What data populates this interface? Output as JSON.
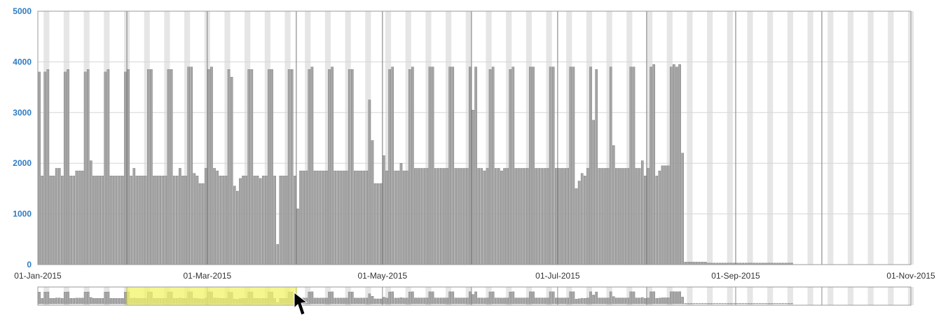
{
  "colors": {
    "bar": "#a6a6a6",
    "bar_stroke": "#6e6e6e",
    "stripe": "#e6e6e6",
    "gridline": "#d6d6d6",
    "month_line": "#8c8c8c",
    "axis_frame": "#9a9a9a",
    "y_label": "#2e7bc4",
    "x_label": "#333333",
    "selection": "#f3f36a",
    "selection_edge": "#c8c83c"
  },
  "icons": {
    "cursor": "arrow-cursor-icon"
  },
  "chart_data": {
    "type": "bar",
    "x_axis_type": "date",
    "start_date": "2015-01-01",
    "end_date": "2015-11-01",
    "ylim": [
      0,
      5000
    ],
    "yticks": [
      "0",
      "1000",
      "2000",
      "3000",
      "4000",
      "5000"
    ],
    "xticks": [
      {
        "date": "2015-01-01",
        "label": "01-Jan-2015"
      },
      {
        "date": "2015-03-01",
        "label": "01-Mar-2015"
      },
      {
        "date": "2015-05-01",
        "label": "01-May-2015"
      },
      {
        "date": "2015-07-01",
        "label": "01-Jul-2015"
      },
      {
        "date": "2015-09-01",
        "label": "01-Sep-2015"
      },
      {
        "date": "2015-11-01",
        "label": "01-Nov-2015"
      }
    ],
    "month_boundaries": [
      "2015-02-01",
      "2015-03-01",
      "2015-04-01",
      "2015-05-01",
      "2015-06-01",
      "2015-07-01",
      "2015-08-01",
      "2015-09-01",
      "2015-10-01"
    ],
    "grid": true,
    "weekend_stripes": true,
    "daily_values": [
      3800,
      1750,
      3800,
      3850,
      1750,
      1750,
      1900,
      1900,
      1750,
      3800,
      3850,
      1750,
      1750,
      1850,
      1850,
      1850,
      3800,
      3850,
      2050,
      1750,
      1750,
      1750,
      1750,
      3800,
      3850,
      1750,
      1750,
      1750,
      1750,
      1750,
      3800,
      3850,
      1750,
      1900,
      1750,
      1750,
      1750,
      1750,
      3850,
      3850,
      1750,
      1750,
      1750,
      1750,
      1750,
      3850,
      3850,
      1750,
      1750,
      1900,
      1750,
      1750,
      3900,
      3900,
      1800,
      1750,
      1600,
      1600,
      1900,
      3850,
      3900,
      1900,
      1850,
      1750,
      1750,
      1750,
      3850,
      3700,
      1550,
      1450,
      1700,
      1750,
      1750,
      3850,
      3850,
      1750,
      1750,
      1700,
      1750,
      1750,
      3850,
      3850,
      1750,
      400,
      1750,
      1750,
      1750,
      3850,
      3850,
      1750,
      1100,
      1850,
      1850,
      1850,
      3850,
      3900,
      1850,
      1850,
      1850,
      1850,
      1850,
      3850,
      3900,
      1850,
      1850,
      1850,
      1850,
      1850,
      3850,
      3850,
      1850,
      1850,
      1850,
      1850,
      1850,
      3250,
      2450,
      1600,
      1600,
      1600,
      2150,
      1850,
      3850,
      3900,
      1850,
      1850,
      2000,
      1850,
      1850,
      3850,
      3900,
      1900,
      1900,
      1900,
      1900,
      1900,
      3900,
      3900,
      1900,
      1900,
      1900,
      1900,
      1900,
      3900,
      3900,
      1900,
      1900,
      1900,
      1900,
      1900,
      3900,
      3050,
      3900,
      1900,
      1900,
      1850,
      1900,
      3850,
      3900,
      1900,
      1900,
      1850,
      1900,
      1900,
      3850,
      3900,
      1900,
      1900,
      1900,
      1900,
      1900,
      3900,
      3900,
      1900,
      1900,
      1900,
      1900,
      1900,
      3900,
      3900,
      1900,
      1900,
      1900,
      1900,
      1900,
      3900,
      3900,
      1500,
      1650,
      1800,
      1750,
      1900,
      3900,
      2850,
      3850,
      1900,
      1900,
      1900,
      1900,
      3900,
      2350,
      1900,
      1900,
      1900,
      1900,
      1900,
      3900,
      3900,
      1900,
      1900,
      2050,
      1750,
      1900,
      3900,
      3950,
      1750,
      1850,
      1950,
      1950,
      1950,
      3900,
      3950,
      3900,
      3950,
      2200,
      50,
      50,
      50,
      50,
      50,
      50,
      50,
      50,
      30,
      30,
      30,
      30,
      30,
      30,
      30,
      30,
      30,
      30,
      30,
      30,
      30,
      30,
      30,
      30,
      30,
      30,
      30,
      30,
      30,
      30,
      30,
      30,
      30,
      30,
      30,
      30,
      30,
      30
    ],
    "navigator": {
      "selection_start": "2015-02-01",
      "selection_end": "2015-04-01"
    }
  }
}
